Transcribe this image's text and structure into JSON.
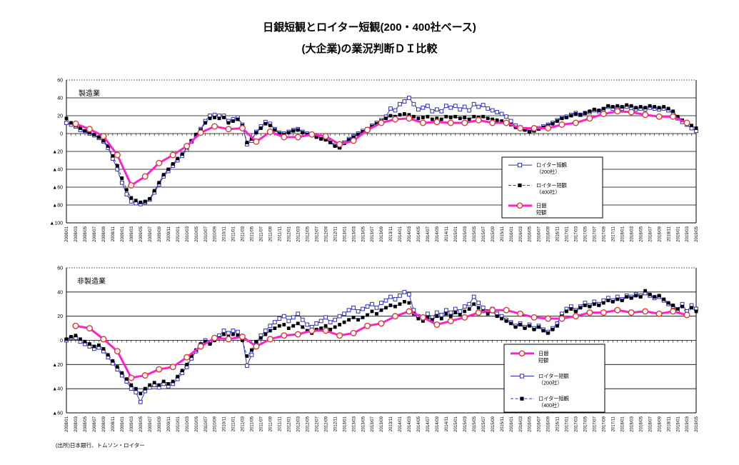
{
  "page": {
    "title_line1": "日銀短観とロイター短観(200・400社ベース)",
    "title_line2": "(大企業)の業況判断ＤＩ比較",
    "source_note": "(出所)日本銀行、トムソン・ロイター"
  },
  "colors": {
    "reuters200": "#2f2fb8",
    "reuters400_line": "#3a3aae",
    "reuters400_marker": "#000000",
    "boj_line": "#ff22cc",
    "boj_marker_stroke": "#e0392f",
    "grid": "#000000"
  },
  "chart_data": [
    {
      "type": "line",
      "panel_label": "製造業",
      "ylim": [
        -100,
        60
      ],
      "ytick_step": 20,
      "grid": true,
      "legend_position": "inside-right",
      "x_tick_labels": [
        "2008/01",
        "2008/03",
        "2008/05",
        "2008/07",
        "2008/09",
        "2008/11",
        "2009/01",
        "2009/03",
        "2009/05",
        "2009/07",
        "2009/09",
        "2009/11",
        "2010/01",
        "2010/03",
        "2010/05",
        "2010/07",
        "2010/09",
        "2010/11",
        "2011/01",
        "2011/03",
        "2011/05",
        "2011/07",
        "2011/09",
        "2011/11",
        "2012/01",
        "2012/03",
        "2012/05",
        "2012/07",
        "2012/09",
        "2012/11",
        "2013/01",
        "2013/03",
        "2013/05",
        "2013/07",
        "2013/09",
        "2013/11",
        "2014/01",
        "2014/03",
        "2014/05",
        "2014/07",
        "2014/09",
        "2014/11",
        "2015/01",
        "2015/03",
        "2015/05",
        "2015/07",
        "2015/09",
        "2015/11",
        "2016/01",
        "2016/03",
        "2016/05",
        "2016/07",
        "2016/09",
        "2016/11",
        "2017/01",
        "2017/03",
        "2017/05",
        "2017/07",
        "2017/09",
        "2017/11",
        "2018/01",
        "2018/03",
        "2018/05",
        "2018/07",
        "2018/09",
        "2018/11",
        "2019/01",
        "2019/03",
        "2019/05"
      ],
      "months_start": "2008/01",
      "months_count": 137,
      "legend_order": [
        "reuters200",
        "reuters400",
        "boj"
      ],
      "series": [
        {
          "key": "reuters200",
          "name": "ロイター短観（200社）",
          "legend_lines": [
            "ロイター短観",
            "（200社）"
          ],
          "x_offset": 0,
          "x_step": 1,
          "values": [
            12,
            10,
            8,
            4,
            2,
            0,
            -2,
            -5,
            -9,
            -16,
            -28,
            -40,
            -55,
            -68,
            -76,
            -78,
            -79,
            -77,
            -74,
            -66,
            -57,
            -48,
            -42,
            -36,
            -30,
            -25,
            -18,
            -9,
            -2,
            5,
            14,
            20,
            21,
            20,
            20,
            14,
            16,
            18,
            10,
            -12,
            -8,
            2,
            8,
            13,
            11,
            5,
            1,
            0,
            2,
            4,
            5,
            2,
            0,
            -1,
            -3,
            -5,
            -6,
            -9,
            -13,
            -15,
            -10,
            -6,
            -3,
            0,
            3,
            5,
            9,
            12,
            15,
            19,
            28,
            26,
            33,
            36,
            40,
            33,
            27,
            29,
            31,
            25,
            27,
            25,
            31,
            29,
            31,
            27,
            30,
            26,
            33,
            30,
            32,
            28,
            26,
            24,
            22,
            19,
            14,
            9,
            7,
            5,
            3,
            4,
            6,
            8,
            10,
            12,
            15,
            18,
            19,
            21,
            23,
            21,
            23,
            24,
            26,
            25,
            27,
            30,
            28,
            29,
            28,
            30,
            29,
            27,
            28,
            27,
            29,
            28,
            27,
            28,
            26,
            23,
            17,
            13,
            10,
            6,
            3
          ]
        },
        {
          "key": "reuters400",
          "name": "ロイター短観（400社）",
          "legend_lines": [
            "ロイター短観",
            "（400社）"
          ],
          "x_offset": 0,
          "x_step": 1,
          "values": [
            17,
            12,
            9,
            6,
            3,
            1,
            -1,
            -4,
            -8,
            -14,
            -25,
            -36,
            -50,
            -63,
            -72,
            -75,
            -77,
            -76,
            -73,
            -64,
            -55,
            -46,
            -40,
            -34,
            -28,
            -23,
            -16,
            -8,
            -1,
            4,
            12,
            17,
            18,
            17,
            18,
            12,
            14,
            16,
            9,
            -10,
            -6,
            1,
            6,
            11,
            9,
            4,
            0,
            -1,
            1,
            3,
            4,
            1,
            -1,
            -2,
            -4,
            -6,
            -7,
            -10,
            -14,
            -16,
            -11,
            -7,
            -4,
            -1,
            2,
            4,
            8,
            11,
            14,
            17,
            20,
            19,
            21,
            22,
            21,
            19,
            17,
            18,
            19,
            16,
            17,
            16,
            19,
            18,
            19,
            17,
            18,
            16,
            19,
            18,
            19,
            17,
            16,
            15,
            14,
            12,
            10,
            7,
            5,
            4,
            2,
            3,
            5,
            7,
            9,
            11,
            14,
            17,
            18,
            20,
            22,
            21,
            23,
            25,
            27,
            26,
            28,
            31,
            30,
            31,
            30,
            32,
            31,
            29,
            30,
            29,
            31,
            30,
            29,
            30,
            28,
            25,
            19,
            15,
            12,
            9,
            6
          ]
        },
        {
          "key": "boj",
          "name": "日銀短観",
          "legend_lines": [
            "日銀",
            "短観"
          ],
          "x_offset": 2,
          "x_step": 3,
          "values": [
            11,
            5,
            -3,
            -24,
            -58,
            -48,
            -33,
            -24,
            -14,
            1,
            8,
            5,
            6,
            -9,
            2,
            -4,
            -4,
            -1,
            -3,
            -12,
            -8,
            4,
            12,
            16,
            17,
            12,
            13,
            12,
            12,
            15,
            12,
            12,
            6,
            6,
            6,
            10,
            12,
            17,
            22,
            25,
            24,
            21,
            19,
            19,
            12
          ]
        }
      ]
    },
    {
      "type": "line",
      "panel_label": "非製造業",
      "ylim": [
        -60,
        60
      ],
      "ytick_step": 20,
      "grid": true,
      "legend_position": "inside-right",
      "x_tick_labels": [
        "2008/01",
        "2008/03",
        "2008/05",
        "2008/07",
        "2008/09",
        "2008/11",
        "2009/01",
        "2009/03",
        "2009/05",
        "2009/07",
        "2009/09",
        "2009/11",
        "2010/01",
        "2010/03",
        "2010/05",
        "2010/07",
        "2010/09",
        "2010/11",
        "2011/01",
        "2011/03",
        "2011/05",
        "2011/07",
        "2011/09",
        "2011/11",
        "2012/01",
        "2012/03",
        "2012/05",
        "2012/07",
        "2012/09",
        "2012/11",
        "2013/01",
        "2013/03",
        "2013/05",
        "2013/07",
        "2013/09",
        "2013/11",
        "2014/01",
        "2014/03",
        "2014/05",
        "2014/07",
        "2014/09",
        "2014/11",
        "2015/01",
        "2015/03",
        "2015/05",
        "2015/07",
        "2015/09",
        "2015/11",
        "2016/01",
        "2016/03",
        "2016/05",
        "2016/07",
        "2016/09",
        "2016/11",
        "2017/01",
        "2017/03",
        "2017/05",
        "2017/07",
        "2017/09",
        "2017/11",
        "2018/01",
        "2018/03",
        "2018/05",
        "2018/07",
        "2018/09",
        "2018/11",
        "2019/01",
        "2019/03",
        "2019/05"
      ],
      "months_start": "2008/01",
      "months_count": 137,
      "legend_order": [
        "boj",
        "reuters200",
        "reuters400"
      ],
      "series": [
        {
          "key": "reuters200",
          "name": "ロイター短観（200社）",
          "legend_lines": [
            "ロイター短観",
            "（200社）"
          ],
          "x_offset": 0,
          "x_step": 1,
          "values": [
            0,
            2,
            2,
            -1,
            -3,
            -5,
            -7,
            -6,
            -9,
            -14,
            -19,
            -24,
            -29,
            -34,
            -40,
            -43,
            -51,
            -42,
            -39,
            -37,
            -39,
            -36,
            -38,
            -36,
            -32,
            -27,
            -22,
            -15,
            -9,
            -4,
            0,
            -2,
            2,
            4,
            8,
            6,
            8,
            7,
            2,
            -21,
            -12,
            -2,
            4,
            8,
            12,
            15,
            18,
            20,
            16,
            19,
            22,
            17,
            13,
            11,
            14,
            16,
            19,
            15,
            17,
            20,
            22,
            25,
            27,
            24,
            26,
            28,
            30,
            27,
            31,
            33,
            36,
            34,
            37,
            40,
            38,
            25,
            20,
            18,
            22,
            19,
            23,
            21,
            25,
            23,
            26,
            24,
            28,
            30,
            36,
            31,
            27,
            24,
            26,
            22,
            20,
            17,
            15,
            12,
            14,
            11,
            13,
            10,
            12,
            9,
            7,
            10,
            14,
            22,
            26,
            28,
            25,
            28,
            31,
            29,
            32,
            30,
            33,
            35,
            33,
            36,
            34,
            37,
            36,
            38,
            37,
            39,
            37,
            35,
            36,
            33,
            30,
            28,
            25,
            30,
            24,
            29,
            26
          ]
        },
        {
          "key": "reuters400",
          "name": "ロイター短観（400社）",
          "legend_lines": [
            "ロイター短観",
            "（400社）"
          ],
          "x_offset": 0,
          "x_step": 1,
          "values": [
            1,
            3,
            4,
            1,
            -1,
            -3,
            -5,
            -4,
            -7,
            -12,
            -17,
            -22,
            -27,
            -32,
            -37,
            -40,
            -44,
            -40,
            -37,
            -35,
            -37,
            -34,
            -36,
            -34,
            -30,
            -25,
            -20,
            -13,
            -8,
            -3,
            -1,
            -3,
            0,
            2,
            5,
            3,
            5,
            4,
            0,
            -13,
            -8,
            -1,
            2,
            5,
            8,
            10,
            12,
            13,
            10,
            12,
            14,
            11,
            8,
            6,
            9,
            10,
            12,
            9,
            11,
            13,
            15,
            17,
            19,
            17,
            19,
            21,
            24,
            22,
            25,
            27,
            29,
            28,
            30,
            32,
            31,
            22,
            18,
            16,
            19,
            17,
            20,
            18,
            22,
            20,
            23,
            21,
            24,
            26,
            30,
            27,
            24,
            22,
            24,
            20,
            18,
            16,
            14,
            11,
            13,
            10,
            12,
            9,
            11,
            8,
            6,
            9,
            12,
            20,
            24,
            26,
            24,
            27,
            29,
            28,
            30,
            29,
            31,
            33,
            32,
            34,
            33,
            36,
            35,
            37,
            36,
            41,
            38,
            36,
            37,
            34,
            31,
            29,
            26,
            28,
            22,
            27,
            24
          ]
        },
        {
          "key": "boj",
          "name": "日銀短観",
          "legend_lines": [
            "日銀",
            "短観"
          ],
          "x_offset": 2,
          "x_step": 3,
          "values": [
            12,
            10,
            1,
            -9,
            -31,
            -29,
            -24,
            -22,
            -14,
            -5,
            2,
            1,
            3,
            -5,
            1,
            4,
            5,
            8,
            8,
            4,
            6,
            12,
            14,
            20,
            24,
            19,
            13,
            16,
            19,
            23,
            25,
            25,
            22,
            19,
            18,
            18,
            20,
            23,
            23,
            25,
            23,
            24,
            22,
            24,
            21
          ]
        }
      ]
    }
  ]
}
